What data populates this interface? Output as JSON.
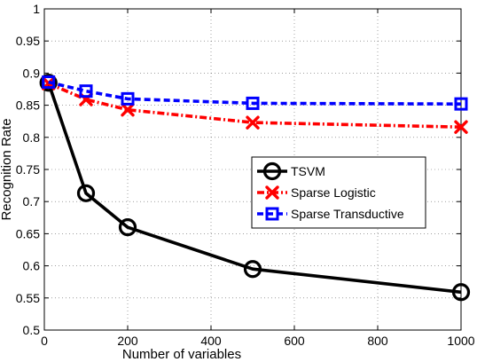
{
  "chart_data": {
    "type": "line",
    "xlabel": "Number of variables",
    "ylabel": "Recognition Rate",
    "xlim": [
      0,
      1000
    ],
    "ylim": [
      0.5,
      1
    ],
    "xticks": [
      0,
      200,
      400,
      600,
      800,
      1000
    ],
    "yticks": [
      0.5,
      0.55,
      0.6,
      0.65,
      0.7,
      0.75,
      0.8,
      0.85,
      0.9,
      0.95,
      1
    ],
    "grid": true,
    "legend_position": "center-right",
    "series": [
      {
        "name": "TSVM",
        "color": "#000000",
        "line_style": "solid",
        "marker": "circle",
        "x": [
          10,
          100,
          200,
          500,
          1000
        ],
        "y": [
          0.885,
          0.713,
          0.66,
          0.595,
          0.559
        ]
      },
      {
        "name": "Sparse Logistic",
        "color": "#ff0000",
        "line_style": "dash-dot",
        "marker": "x",
        "x": [
          10,
          100,
          200,
          500,
          1000
        ],
        "y": [
          0.884,
          0.859,
          0.843,
          0.823,
          0.816
        ]
      },
      {
        "name": "Sparse Transductive",
        "color": "#0000ff",
        "line_style": "dashed",
        "marker": "square",
        "x": [
          10,
          100,
          200,
          500,
          1000
        ],
        "y": [
          0.886,
          0.872,
          0.86,
          0.853,
          0.852
        ]
      }
    ]
  }
}
